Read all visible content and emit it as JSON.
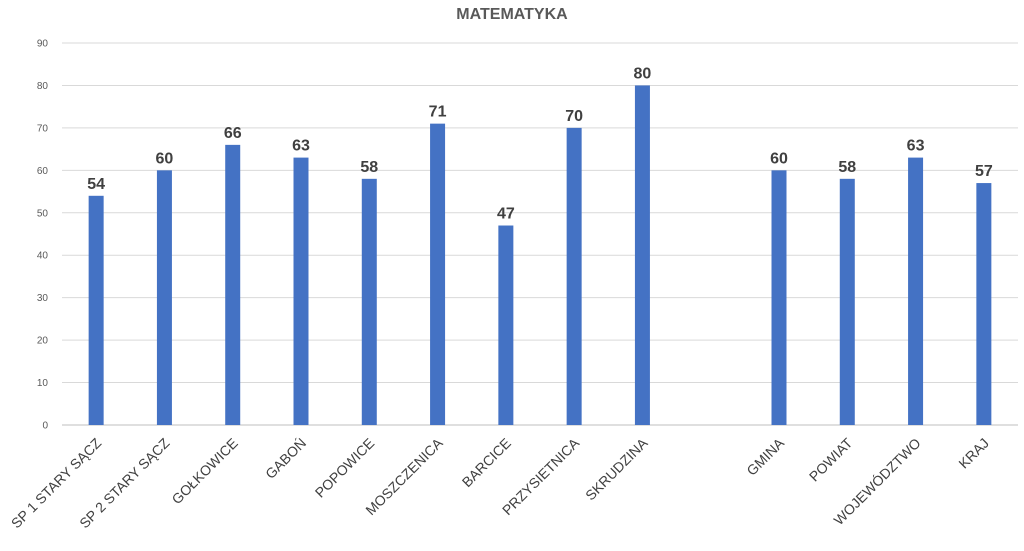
{
  "chart_data": {
    "type": "bar",
    "title": "MATEMATYKA",
    "xlabel": "",
    "ylabel": "",
    "ylim": [
      0,
      90
    ],
    "yticks": [
      0,
      10,
      20,
      30,
      40,
      50,
      60,
      70,
      80,
      90
    ],
    "grid": true,
    "bar_color": "#4472C4",
    "categories": [
      "SP 1 STARY SĄCZ",
      "SP 2 STARY SĄCZ",
      "GOŁKOWICE",
      "GABOŃ",
      "POPOWICE",
      "MOSZCZENICA",
      "BARCICE",
      "PRZYSIETNICA",
      "SKRUDZINA",
      "",
      "GMINA",
      "POWIAT",
      "WOJEWÓDZTWO",
      "KRAJ"
    ],
    "values": [
      54,
      60,
      66,
      63,
      58,
      71,
      47,
      70,
      80,
      null,
      60,
      58,
      63,
      57
    ]
  }
}
